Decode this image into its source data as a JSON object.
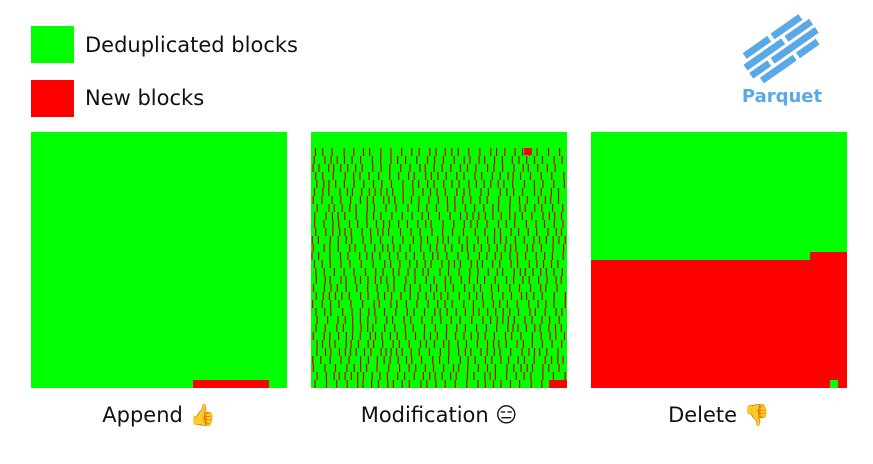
{
  "legend": [
    {
      "label": "Deduplicated blocks"
    },
    {
      "label": "New blocks"
    }
  ],
  "logo": {
    "label": "Parquet"
  },
  "panels": [
    {
      "caption": "Append 👍"
    },
    {
      "caption": "Modification 😑"
    },
    {
      "caption": "Delete 👎"
    }
  ]
}
